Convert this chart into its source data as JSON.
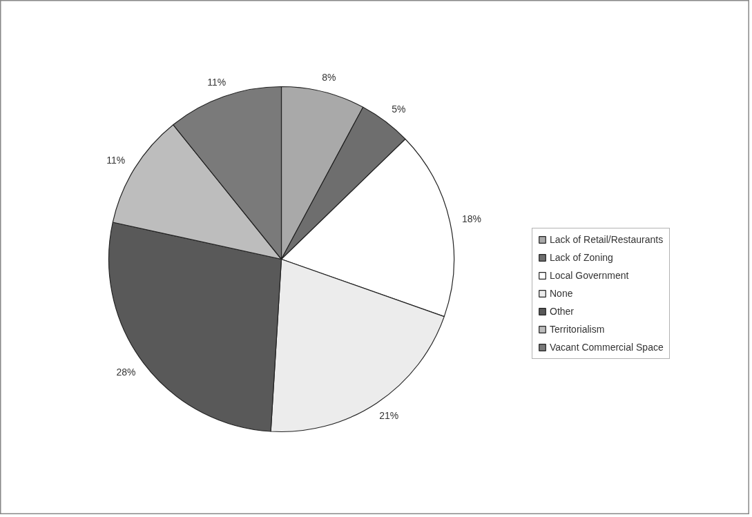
{
  "chart_data": {
    "type": "pie",
    "categories": [
      "Lack of Retail/Restaurants",
      "Lack of Zoning",
      "Local Government",
      "None",
      "Other",
      "Territorialism",
      "Vacant Commercial Space"
    ],
    "values": [
      8,
      5,
      18,
      21,
      28,
      11,
      11
    ],
    "colors": [
      "#a9a9a9",
      "#6e6e6e",
      "#ffffff",
      "#ececec",
      "#595959",
      "#bdbdbd",
      "#7a7a7a"
    ],
    "value_labels": [
      "8%",
      "5%",
      "18%",
      "21%",
      "28%",
      "11%",
      "11%"
    ],
    "legend": "right"
  }
}
